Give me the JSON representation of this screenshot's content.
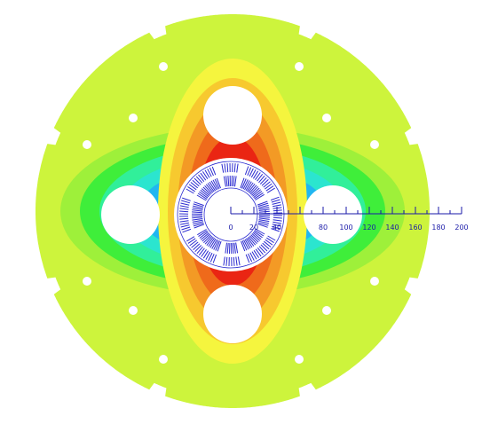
{
  "figure": {
    "colors": {
      "background": "#ffffff",
      "contour_scale": [
        "#0a2fd8",
        "#1c72ee",
        "#21b6f1",
        "#2be5cf",
        "#31ef9a",
        "#3fee3a",
        "#9ef03a",
        "#cdf43c",
        "#f5f53e",
        "#f7c92f",
        "#f39a25",
        "#ef6a1b",
        "#ea2513"
      ],
      "coil_lines": "#2a2ad0",
      "scale_bar": "#1a1aa8"
    },
    "scale_bar": {
      "ticks": [
        "0",
        "20",
        "40",
        "",
        "80",
        "100",
        "120",
        "140",
        "160",
        "180",
        "200"
      ]
    }
  }
}
